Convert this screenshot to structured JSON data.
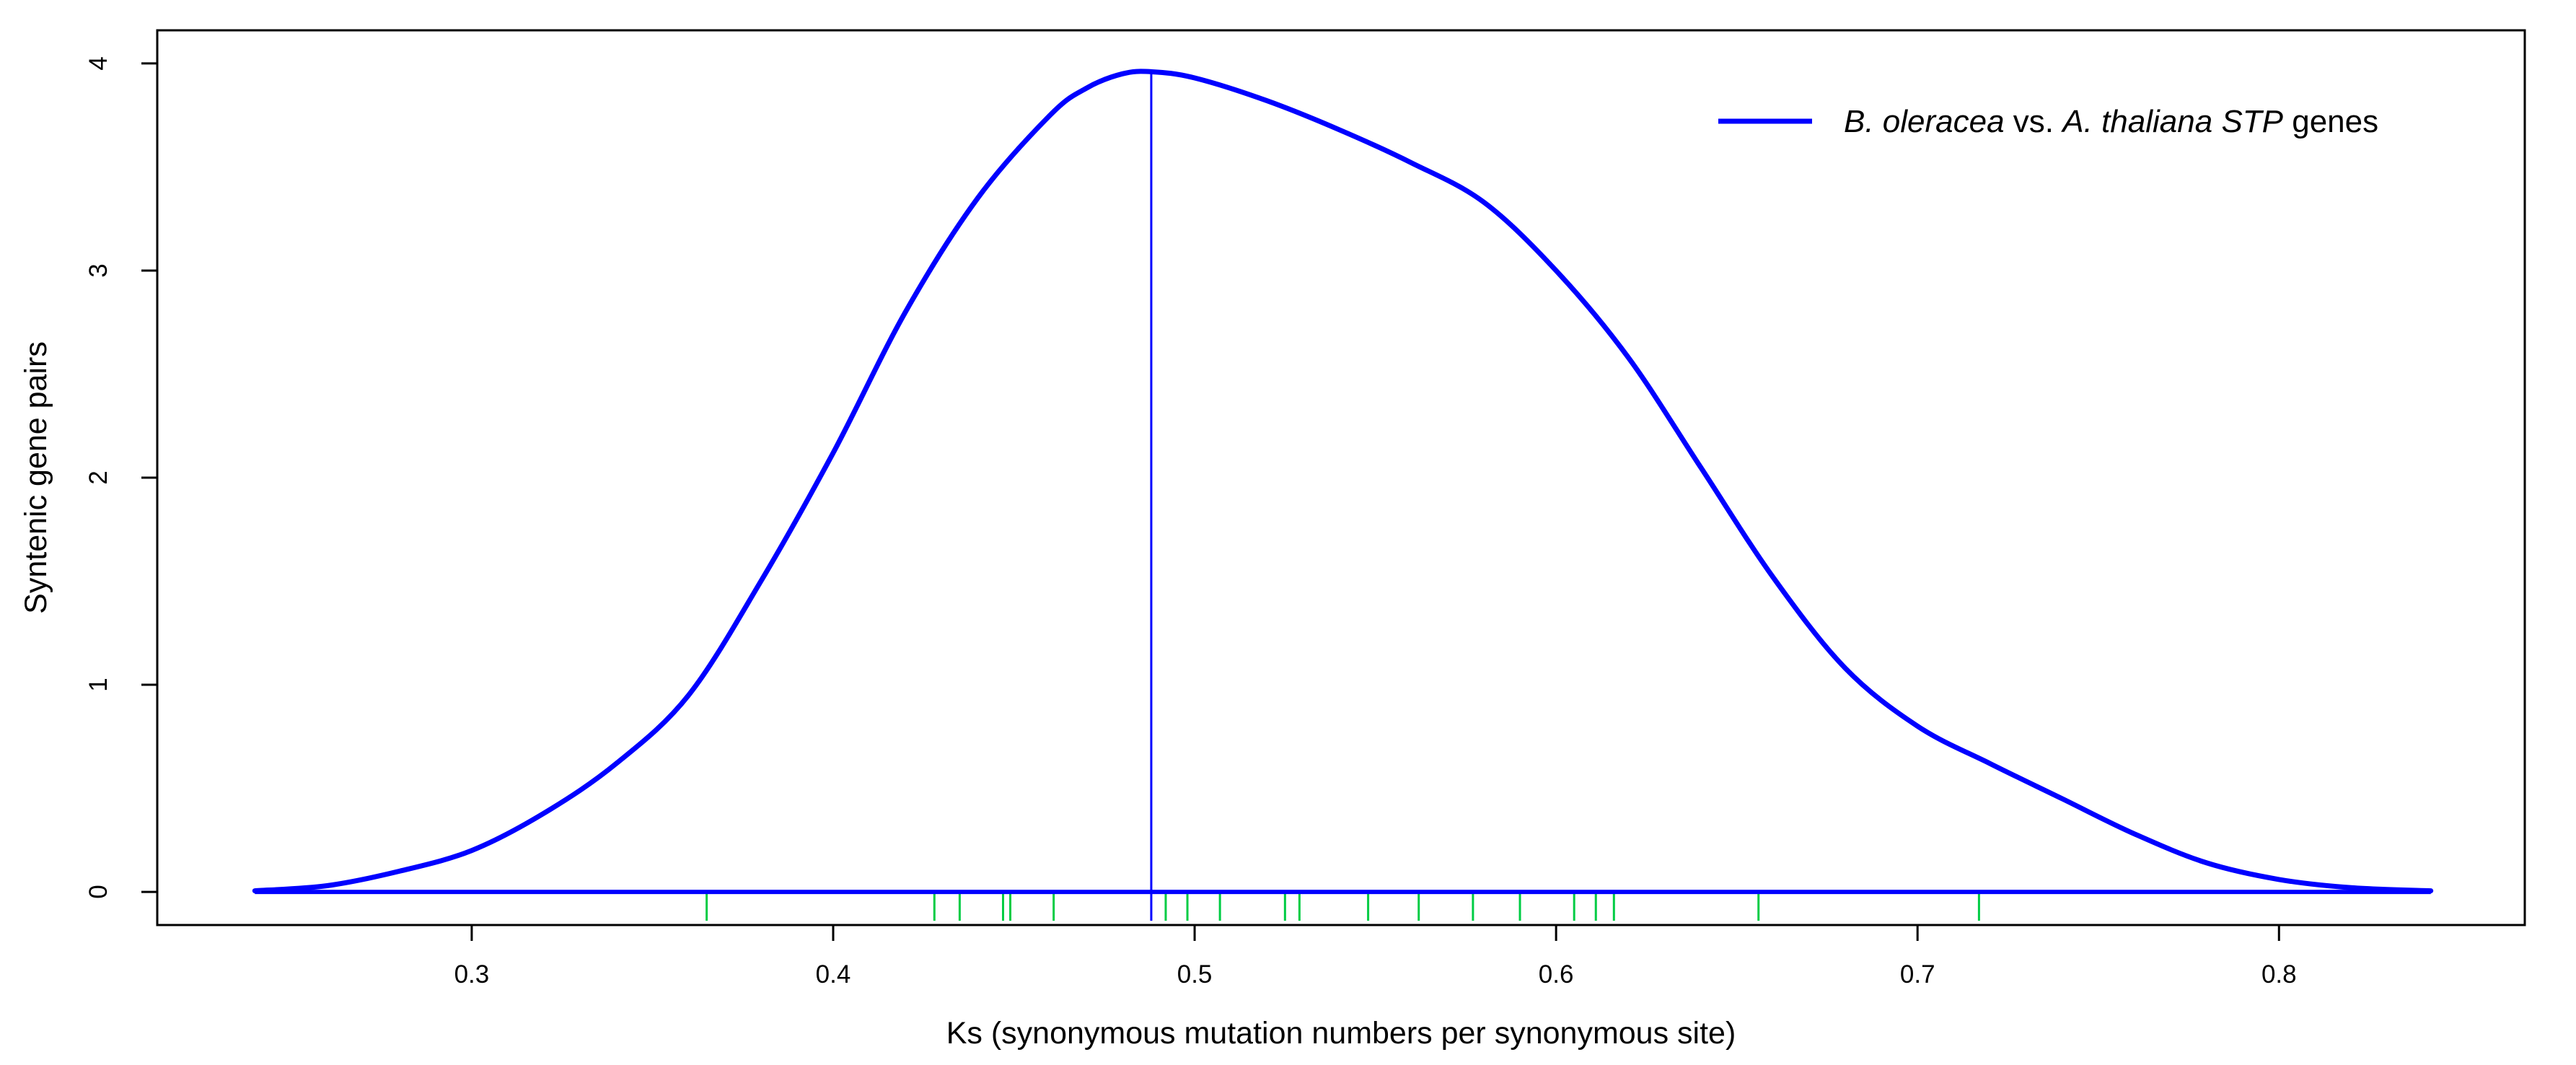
{
  "chart_data": {
    "type": "line",
    "title": "",
    "xlabel": "Ks (synonymous mutation numbers per synonymous site)",
    "ylabel": "Syntenic gene pairs",
    "xlim": [
      0.213,
      0.868
    ],
    "ylim": [
      -0.16,
      4.16
    ],
    "x_ticks": [
      0.3,
      0.4,
      0.5,
      0.6,
      0.7,
      0.8
    ],
    "x_tick_labels": [
      "0.3",
      "0.4",
      "0.5",
      "0.6",
      "0.7",
      "0.8"
    ],
    "y_ticks": [
      0,
      1,
      2,
      3,
      4
    ],
    "y_tick_labels": [
      "0",
      "1",
      "2",
      "3",
      "4"
    ],
    "grid": false,
    "legend": {
      "position": "top-right",
      "entries": [
        {
          "segments": [
            {
              "text": "B. oleracea",
              "italic": true
            },
            {
              "text": " vs. ",
              "italic": false
            },
            {
              "text": "A. thaliana",
              "italic": true
            },
            {
              "text": " ",
              "italic": false
            },
            {
              "text": "STP",
              "italic": true
            },
            {
              "text": " genes",
              "italic": false
            }
          ],
          "color": "#0000ff"
        }
      ]
    },
    "series": [
      {
        "color": "#0000ff",
        "x": [
          0.24,
          0.26,
          0.28,
          0.3,
          0.32,
          0.34,
          0.36,
          0.38,
          0.4,
          0.42,
          0.44,
          0.46,
          0.47,
          0.48,
          0.488,
          0.5,
          0.52,
          0.54,
          0.56,
          0.58,
          0.6,
          0.62,
          0.64,
          0.66,
          0.68,
          0.7,
          0.72,
          0.74,
          0.76,
          0.78,
          0.8,
          0.82,
          0.842
        ],
        "y": [
          0.005,
          0.03,
          0.1,
          0.2,
          0.38,
          0.62,
          0.95,
          1.5,
          2.12,
          2.8,
          3.35,
          3.75,
          3.88,
          3.95,
          3.96,
          3.93,
          3.82,
          3.68,
          3.52,
          3.33,
          3.0,
          2.58,
          2.05,
          1.52,
          1.08,
          0.8,
          0.62,
          0.45,
          0.28,
          0.14,
          0.06,
          0.02,
          0.005
        ]
      }
    ],
    "annotations": {
      "peak_line": {
        "x": 0.488,
        "y_top": 3.96,
        "color": "#0000ff"
      },
      "baseline": {
        "y": 0,
        "x_start": 0.24,
        "x_end": 0.842,
        "color": "#0000ff"
      },
      "rug": {
        "color": "#00cc44",
        "x": [
          0.365,
          0.428,
          0.435,
          0.447,
          0.449,
          0.461,
          0.492,
          0.498,
          0.507,
          0.525,
          0.529,
          0.548,
          0.562,
          0.577,
          0.59,
          0.605,
          0.611,
          0.616,
          0.656,
          0.717
        ]
      }
    }
  }
}
